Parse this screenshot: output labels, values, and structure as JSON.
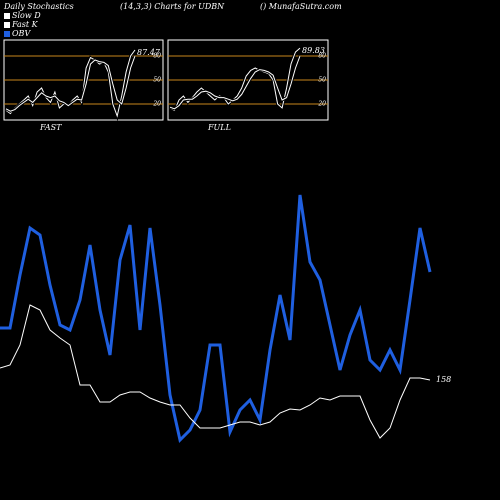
{
  "chart_data": [
    {
      "type": "line",
      "title": "Daily Stochastics",
      "subtitle": "(14,3,3) Charts for UDBN",
      "source": "() MunafaSutra.com",
      "label": "FAST",
      "ylim": [
        0,
        100
      ],
      "yticks": [
        20,
        50,
        80
      ],
      "grid_color": "#c8861b",
      "series": [
        {
          "name": "Fast K",
          "color": "#ffffff",
          "values": [
            12,
            8,
            15,
            20,
            25,
            30,
            18,
            35,
            40,
            28,
            22,
            35,
            15,
            20,
            18,
            25,
            30,
            22,
            65,
            78,
            75,
            70,
            72,
            60,
            20,
            5,
            30,
            60,
            80,
            87.47
          ]
        },
        {
          "name": "Slow D",
          "color": "#ffffff",
          "values": [
            14,
            11,
            13,
            18,
            22,
            26,
            22,
            28,
            34,
            30,
            28,
            30,
            24,
            22,
            18,
            22,
            26,
            25,
            45,
            70,
            75,
            73,
            72,
            68,
            45,
            25,
            20,
            40,
            65,
            80
          ]
        }
      ]
    },
    {
      "type": "line",
      "label": "FULL",
      "ylim": [
        0,
        100
      ],
      "yticks": [
        20,
        50,
        80
      ],
      "grid_color": "#c8861b",
      "series": [
        {
          "color": "#ffffff",
          "values": [
            15,
            12,
            25,
            30,
            22,
            28,
            35,
            40,
            35,
            30,
            25,
            30,
            28,
            20,
            25,
            30,
            40,
            55,
            62,
            65,
            62,
            60,
            58,
            50,
            20,
            15,
            40,
            70,
            85,
            89.83
          ]
        },
        {
          "color": "#ffffff",
          "values": [
            16,
            14,
            18,
            25,
            26,
            26,
            30,
            35,
            36,
            34,
            30,
            28,
            28,
            26,
            24,
            26,
            32,
            42,
            52,
            60,
            63,
            62,
            60,
            56,
            40,
            25,
            28,
            45,
            65,
            80
          ]
        }
      ]
    },
    {
      "type": "line",
      "ylim": [
        0,
        500
      ],
      "y2lim": [
        98,
        348
      ],
      "series": [
        {
          "name": "OBV",
          "color": "#1f5fe0",
          "values": [
            172,
            172,
            225,
            272,
            265,
            215,
            175,
            170,
            200,
            255,
            190,
            145,
            240,
            275,
            170,
            272,
            195,
            105,
            60,
            70,
            90,
            155,
            155,
            68,
            90,
            100,
            80,
            150,
            205,
            160,
            305,
            238,
            220,
            175,
            130,
            165,
            190,
            140,
            130,
            150,
            130,
            200,
            272,
            228
          ]
        },
        {
          "color": "#ffffff",
          "axis": "y2",
          "values": [
            164,
            165.5,
            175.5,
            195.5,
            193,
            183,
            179,
            175.5,
            155.5,
            155.5,
            147,
            147,
            150.5,
            152,
            152,
            149,
            147,
            145.5,
            145.5,
            139,
            134,
            134,
            134,
            135.5,
            137,
            137,
            135.5,
            137,
            141.5,
            143.5,
            143,
            145.5,
            149,
            148,
            150,
            150,
            150,
            138,
            129,
            134,
            148,
            159,
            159,
            158
          ]
        }
      ]
    }
  ]
}
